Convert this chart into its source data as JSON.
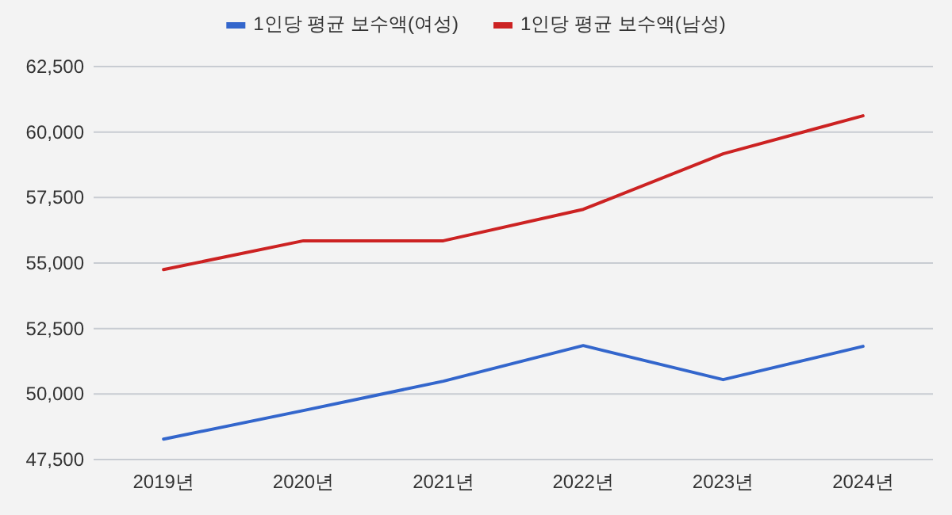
{
  "chart_data": {
    "type": "line",
    "categories": [
      "2019년",
      "2020년",
      "2021년",
      "2022년",
      "2023년",
      "2024년"
    ],
    "series": [
      {
        "name": "1인당 평균 보수액(여성)",
        "color": "#3366cc",
        "values": [
          48280,
          49370,
          50490,
          51850,
          50550,
          51820
        ]
      },
      {
        "name": "1인당 평균 보수액(남성)",
        "color": "#cc2222",
        "values": [
          54750,
          55850,
          55850,
          57050,
          59170,
          60620
        ]
      }
    ],
    "ylim": [
      47500,
      62500
    ],
    "yticks": [
      {
        "value": 47500,
        "label": "47,500"
      },
      {
        "value": 50000,
        "label": "50,000"
      },
      {
        "value": 52500,
        "label": "52,500"
      },
      {
        "value": 55000,
        "label": "55,000"
      },
      {
        "value": 57500,
        "label": "57,500"
      },
      {
        "value": 60000,
        "label": "60,000"
      },
      {
        "value": 62500,
        "label": "62,500"
      }
    ],
    "grid": "y",
    "legend": "top",
    "marker": "none",
    "line_style": "solid"
  }
}
